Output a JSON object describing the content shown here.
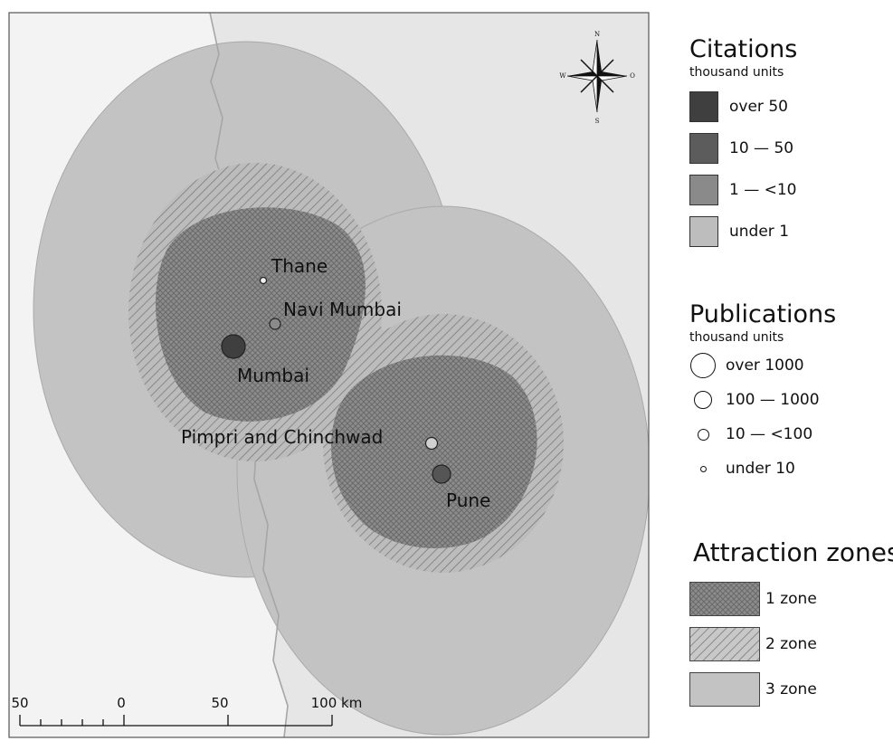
{
  "map": {
    "cities": [
      {
        "name": "Thane"
      },
      {
        "name": "Navi Mumbai"
      },
      {
        "name": "Mumbai"
      },
      {
        "name": "Pimpri and Chinchwad"
      },
      {
        "name": "Pune"
      }
    ],
    "compass": {
      "n": "N",
      "s": "S",
      "w": "W",
      "e": "O"
    },
    "scalebar": {
      "ticks": [
        "50",
        "0",
        "50",
        "100 km"
      ]
    }
  },
  "legend": {
    "citations": {
      "title": "Citations",
      "subtitle": "thousand units",
      "items": [
        {
          "label": "over 50",
          "color": "#3f3f3f"
        },
        {
          "label": "10 — 50",
          "color": "#5c5c5c"
        },
        {
          "label": "1 — <10",
          "color": "#8a8a8a"
        },
        {
          "label": "under 1",
          "color": "#bdbdbd"
        }
      ]
    },
    "publications": {
      "title": "Publications",
      "subtitle": "thousand units",
      "items": [
        {
          "label": "over 1000"
        },
        {
          "label": "100 — 1000"
        },
        {
          "label": "10 — <100"
        },
        {
          "label": "under 10"
        }
      ]
    },
    "zones": {
      "title": "Attraction zones",
      "items": [
        {
          "label": "1 zone"
        },
        {
          "label": "2 zone"
        },
        {
          "label": "3 zone"
        }
      ]
    }
  }
}
